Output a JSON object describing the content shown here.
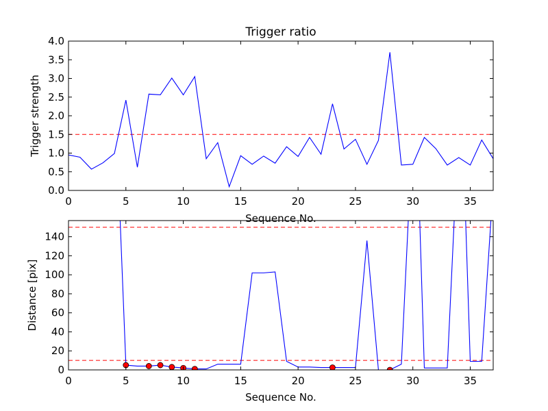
{
  "chart_data": [
    {
      "type": "line",
      "title": "Trigger ratio",
      "xlabel": "Sequence No.",
      "ylabel": "Trigger strength",
      "xlim": [
        0,
        37
      ],
      "ylim": [
        0,
        4.0
      ],
      "x_ticks": [
        0,
        5,
        10,
        15,
        20,
        25,
        30,
        35
      ],
      "y_ticks": [
        "0.0",
        "0.5",
        "1.0",
        "1.5",
        "2.0",
        "2.5",
        "3.0",
        "3.5",
        "4.0"
      ],
      "grid": false,
      "line_color": "#0000ff",
      "threshold_color": "#ff0000",
      "series": [
        {
          "x": [
            0,
            1,
            2,
            3,
            4,
            5,
            6,
            7,
            8,
            9,
            10,
            11,
            12,
            13,
            14,
            15,
            16,
            17,
            18,
            19,
            20,
            21,
            22,
            23,
            24,
            25,
            26,
            27,
            28,
            29,
            30,
            31,
            32,
            33,
            34,
            35,
            36,
            37
          ],
          "values": [
            0.95,
            0.89,
            0.57,
            0.74,
            0.99,
            2.42,
            0.62,
            2.58,
            2.56,
            3.01,
            2.56,
            3.05,
            0.85,
            1.28,
            0.1,
            0.93,
            0.7,
            0.92,
            0.73,
            1.17,
            0.91,
            1.42,
            0.97,
            2.32,
            1.11,
            1.37,
            0.7,
            1.34,
            3.7,
            0.68,
            0.7,
            1.42,
            1.12,
            0.68,
            0.88,
            0.68,
            1.35,
            0.85
          ]
        }
      ],
      "thresholds": [
        1.5
      ]
    },
    {
      "type": "line",
      "title": "",
      "xlabel": "Sequence No.",
      "ylabel": "Distance [pix]",
      "xlim": [
        0,
        37
      ],
      "ylim": [
        0,
        157
      ],
      "x_ticks": [
        0,
        5,
        10,
        15,
        20,
        25,
        30,
        35
      ],
      "y_ticks": [
        0,
        20,
        40,
        60,
        80,
        100,
        120,
        140
      ],
      "grid": false,
      "line_color": "#0000ff",
      "threshold_color": "#ff0000",
      "marker_color": "#ff0000",
      "series": [
        {
          "x": [
            4.5,
            5,
            6,
            7,
            8,
            9,
            10,
            11,
            12,
            13,
            14,
            15,
            16,
            17,
            18,
            19,
            20,
            21,
            22,
            23,
            24,
            25,
            26,
            27,
            28,
            29,
            29.6,
            30.6,
            31,
            32,
            33,
            33.6,
            34.6,
            35,
            36,
            36.8
          ],
          "values": [
            157,
            5,
            4,
            4,
            5,
            3,
            2,
            1,
            1,
            6,
            6,
            6,
            102,
            102,
            103,
            9,
            3,
            3,
            2.5,
            2.5,
            2.5,
            2.5,
            136,
            0,
            0,
            6,
            157,
            157,
            2,
            2,
            2,
            157,
            157,
            9,
            9,
            157
          ]
        }
      ],
      "markers": {
        "x": [
          5,
          7,
          8,
          9,
          10,
          11,
          23,
          28
        ],
        "values": [
          5,
          4,
          5,
          3,
          2,
          1,
          2.5,
          0
        ]
      },
      "thresholds": [
        150,
        10
      ]
    }
  ]
}
